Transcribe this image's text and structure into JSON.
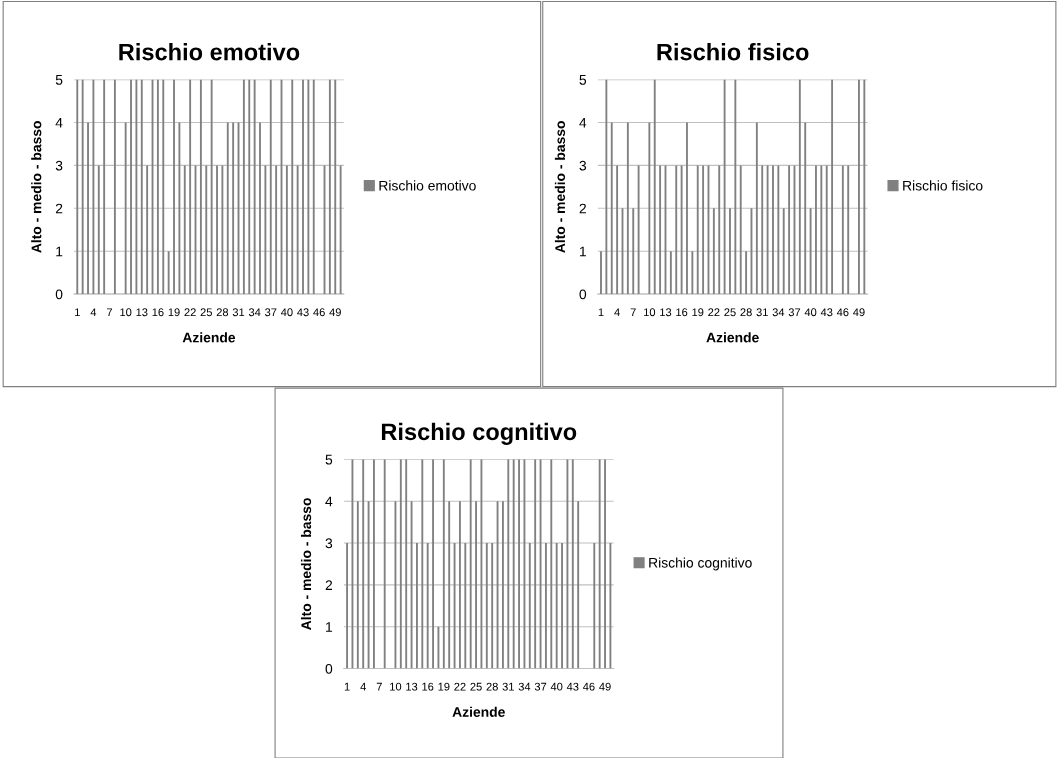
{
  "chart_data": [
    {
      "type": "bar",
      "title": "Rischio emotivo",
      "xlabel": "Aziende",
      "ylabel": "Alto - medio - basso",
      "categories": [
        "1",
        null,
        null,
        "4",
        null,
        null,
        "7",
        null,
        null,
        "10",
        null,
        null,
        "13",
        null,
        null,
        "16",
        null,
        null,
        "19",
        null,
        null,
        "22",
        null,
        null,
        "25",
        null,
        null,
        "28",
        null,
        null,
        "31",
        null,
        null,
        "34",
        null,
        null,
        "37",
        null,
        null,
        "40",
        null,
        null,
        "43",
        null,
        null,
        "46",
        null,
        null,
        "49",
        null
      ],
      "series": [
        {
          "name": "Rischio emotivo",
          "color": "#808080",
          "values": [
            5,
            5,
            4,
            5,
            3,
            5,
            0,
            5,
            0,
            4,
            5,
            5,
            5,
            3,
            5,
            5,
            5,
            1,
            5,
            4,
            3,
            5,
            3,
            5,
            3,
            5,
            3,
            3,
            4,
            4,
            4,
            5,
            5,
            5,
            4,
            3,
            5,
            3,
            5,
            3,
            5,
            3,
            5,
            5,
            5,
            0,
            3,
            5,
            5,
            3
          ]
        }
      ],
      "ylim": [
        0,
        5
      ],
      "yticks": [
        0,
        1,
        2,
        3,
        4,
        5
      ],
      "grid": "y",
      "legend": "right"
    },
    {
      "type": "bar",
      "title": "Rischio fisico",
      "xlabel": "Aziende",
      "ylabel": "Alto - medio - basso",
      "categories": [
        "1",
        null,
        null,
        "4",
        null,
        null,
        "7",
        null,
        null,
        "10",
        null,
        null,
        "13",
        null,
        null,
        "16",
        null,
        null,
        "19",
        null,
        null,
        "22",
        null,
        null,
        "25",
        null,
        null,
        "28",
        null,
        null,
        "31",
        null,
        null,
        "34",
        null,
        null,
        "37",
        null,
        null,
        "40",
        null,
        null,
        "43",
        null,
        null,
        "46",
        null,
        null,
        "49",
        null
      ],
      "series": [
        {
          "name": "Rischio fisico",
          "color": "#808080",
          "values": [
            1,
            5,
            4,
            3,
            2,
            4,
            2,
            3,
            0,
            4,
            5,
            3,
            3,
            1,
            3,
            3,
            4,
            1,
            3,
            3,
            3,
            2,
            3,
            5,
            2,
            5,
            3,
            1,
            2,
            4,
            3,
            3,
            3,
            3,
            2,
            3,
            3,
            5,
            4,
            2,
            3,
            3,
            3,
            5,
            0,
            3,
            3,
            0,
            5,
            5
          ]
        }
      ],
      "ylim": [
        0,
        5
      ],
      "yticks": [
        0,
        1,
        2,
        3,
        4,
        5
      ],
      "grid": "y",
      "legend": "right"
    },
    {
      "type": "bar",
      "title": "Rischio cognitivo",
      "xlabel": "Aziende",
      "ylabel": "Alto - medio - basso",
      "categories": [
        "1",
        null,
        null,
        "4",
        null,
        null,
        "7",
        null,
        null,
        "10",
        null,
        null,
        "13",
        null,
        null,
        "16",
        null,
        null,
        "19",
        null,
        null,
        "22",
        null,
        null,
        "25",
        null,
        null,
        "28",
        null,
        null,
        "31",
        null,
        null,
        "34",
        null,
        null,
        "37",
        null,
        null,
        "40",
        null,
        null,
        "43",
        null,
        null,
        "46",
        null,
        null,
        "49",
        null
      ],
      "series": [
        {
          "name": "Rischio cognitivo",
          "color": "#808080",
          "values": [
            3,
            5,
            4,
            5,
            4,
            5,
            0,
            5,
            0,
            4,
            5,
            5,
            4,
            3,
            5,
            3,
            5,
            1,
            5,
            4,
            3,
            4,
            3,
            5,
            4,
            5,
            3,
            3,
            4,
            4,
            5,
            5,
            5,
            5,
            3,
            5,
            5,
            3,
            5,
            3,
            3,
            5,
            5,
            4,
            0,
            0,
            3,
            5,
            5,
            3
          ]
        }
      ],
      "ylim": [
        0,
        5
      ],
      "yticks": [
        0,
        1,
        2,
        3,
        4,
        5
      ],
      "grid": "y",
      "legend": "right"
    }
  ]
}
